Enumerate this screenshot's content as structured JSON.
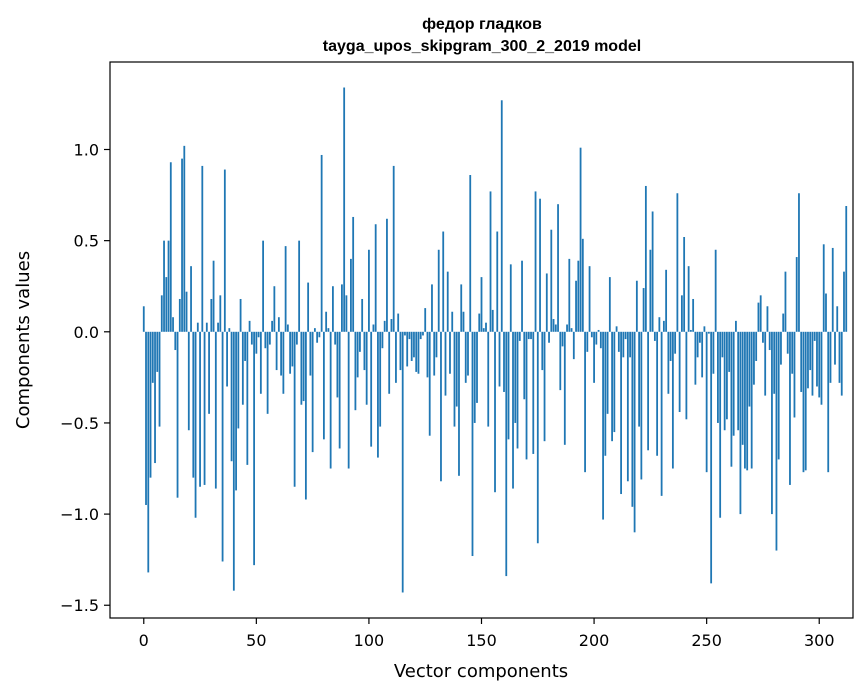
{
  "chart_data": {
    "type": "bar",
    "title_line1": "федор гладков",
    "title_line2": "tayga_upos_skipgram_300_2_2019 model",
    "xlabel": "Vector components",
    "ylabel": "Components values",
    "xlim": [
      -15,
      315
    ],
    "ylim": [
      -1.57,
      1.48
    ],
    "xticks": [
      0,
      50,
      100,
      150,
      200,
      250,
      300
    ],
    "xtick_labels": [
      "0",
      "50",
      "100",
      "150",
      "200",
      "250",
      "300"
    ],
    "yticks": [
      -1.5,
      -1.0,
      -0.5,
      0.0,
      0.5,
      1.0
    ],
    "ytick_labels": [
      "−1.5",
      "−1.0",
      "−0.5",
      "0.0",
      "0.5",
      "1.0"
    ],
    "grid": false,
    "bar_color": "#1f77b4",
    "values": [
      0.14,
      -0.95,
      -1.32,
      -0.8,
      -0.28,
      -0.72,
      -0.22,
      -0.52,
      0.2,
      0.5,
      0.3,
      0.5,
      0.93,
      0.08,
      -0.1,
      -0.91,
      0.18,
      0.95,
      1.02,
      0.22,
      -0.54,
      0.36,
      -0.8,
      -1.02,
      0.05,
      -0.85,
      0.91,
      -0.84,
      0.05,
      -0.45,
      0.18,
      0.39,
      -0.86,
      0.05,
      0.2,
      -1.26,
      0.89,
      -0.3,
      0.02,
      -0.71,
      -1.42,
      -0.87,
      -0.53,
      0.18,
      -0.4,
      -0.16,
      -0.73,
      0.06,
      -0.07,
      -1.28,
      -0.12,
      -0.03,
      -0.34,
      0.5,
      -0.09,
      -0.45,
      -0.07,
      0.06,
      0.25,
      -0.21,
      0.08,
      -0.24,
      -0.34,
      0.47,
      0.04,
      -0.23,
      -0.19,
      -0.85,
      -0.07,
      0.5,
      -0.4,
      -0.38,
      -0.92,
      0.27,
      -0.24,
      -0.66,
      0.02,
      -0.06,
      -0.03,
      0.97,
      -0.59,
      0.11,
      0.02,
      -0.75,
      0.25,
      -0.07,
      -0.36,
      -0.64,
      0.26,
      1.34,
      0.2,
      -0.75,
      0.4,
      0.63,
      -0.43,
      -0.25,
      -0.11,
      0.18,
      -0.21,
      -0.4,
      0.45,
      -0.63,
      0.04,
      0.59,
      -0.69,
      -0.52,
      -0.09,
      0.06,
      0.62,
      -0.34,
      0.07,
      0.91,
      -0.28,
      0.1,
      -0.21,
      -1.43,
      -0.02,
      -0.19,
      -0.04,
      -0.16,
      -0.14,
      -0.22,
      -0.23,
      -0.04,
      -0.02,
      0.13,
      -0.25,
      -0.57,
      0.26,
      -0.24,
      -0.14,
      0.45,
      -0.82,
      0.55,
      -0.35,
      0.33,
      -0.23,
      0.11,
      -0.52,
      -0.41,
      -0.79,
      0.26,
      0.11,
      -0.28,
      -0.24,
      0.86,
      -1.23,
      -0.5,
      -0.39,
      0.1,
      0.3,
      0.02,
      0.05,
      -0.52,
      0.77,
      0.12,
      -0.88,
      0.55,
      -0.3,
      1.27,
      -0.33,
      -1.34,
      -0.59,
      0.37,
      -0.86,
      -0.5,
      -0.64,
      -0.05,
      0.39,
      -0.37,
      -0.7,
      -0.04,
      -0.04,
      -0.67,
      0.77,
      -1.16,
      0.73,
      -0.21,
      -0.6,
      0.32,
      -0.06,
      0.56,
      0.07,
      0.04,
      0.7,
      -0.32,
      -0.08,
      -0.62,
      0.04,
      0.4,
      0.02,
      -0.15,
      0.28,
      0.39,
      1.01,
      0.51,
      -0.77,
      -0.11,
      0.36,
      -0.03,
      -0.28,
      -0.07,
      0.01,
      -0.09,
      -1.03,
      -0.68,
      -0.45,
      0.3,
      -0.6,
      -0.55,
      0.03,
      -0.11,
      -0.89,
      -0.14,
      -0.04,
      -0.82,
      -0.14,
      -0.96,
      -1.1,
      0.28,
      -0.52,
      -0.81,
      0.24,
      0.8,
      -0.65,
      0.45,
      0.66,
      -0.05,
      -0.68,
      0.08,
      -0.9,
      0.06,
      0.34,
      -0.34,
      -0.16,
      -0.75,
      -0.12,
      0.76,
      -0.44,
      0.2,
      0.52,
      -0.48,
      0.36,
      0.01,
      0.18,
      -0.29,
      -0.14,
      -0.06,
      -0.25,
      0.03,
      -0.77,
      -0.01,
      -1.38,
      -0.23,
      0.45,
      -0.5,
      -1.02,
      -0.14,
      -0.54,
      -0.48,
      -0.22,
      -0.74,
      -0.57,
      0.06,
      -0.54,
      -1.0,
      -0.62,
      -0.75,
      -0.76,
      -0.41,
      -0.75,
      -0.29,
      -0.16,
      0.16,
      0.2,
      -0.06,
      -0.35,
      0.14,
      -0.1,
      -1.0,
      -0.34,
      -1.2,
      -0.7,
      -0.18,
      0.1,
      0.33,
      -0.12,
      -0.84,
      -0.23,
      -0.47,
      0.41,
      0.76,
      -0.33,
      -0.77,
      -0.76,
      -0.31,
      -0.21,
      -0.35,
      -0.05,
      -0.3,
      -0.36,
      -0.4,
      0.48,
      0.21,
      -0.77,
      -0.28,
      0.46,
      -0.18,
      0.14,
      -0.28,
      -0.35,
      0.33,
      0.69
    ]
  }
}
